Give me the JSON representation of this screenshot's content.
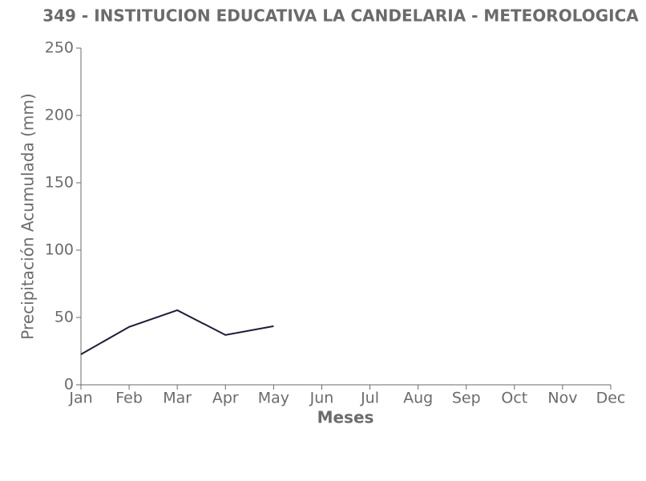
{
  "chart_data": {
    "type": "line",
    "title": "349 - INSTITUCION EDUCATIVA LA CANDELARIA - METEOROLOGICA",
    "x_label": "Meses",
    "y_label": "Precipitación Acumulada (mm)",
    "categories": [
      "Jan",
      "Feb",
      "Mar",
      "Apr",
      "May",
      "Jun",
      "Jul",
      "Aug",
      "Sep",
      "Oct",
      "Nov",
      "Dec"
    ],
    "series": [
      {
        "color": "#1c1c3c",
        "values": [
          22.6,
          43,
          55.4,
          37,
          43.5,
          null,
          null,
          null,
          null,
          null,
          null,
          null
        ]
      }
    ],
    "ylim": [
      0,
      250
    ],
    "yticks": [
      0,
      50,
      100,
      150,
      200,
      250
    ],
    "grid": false
  }
}
